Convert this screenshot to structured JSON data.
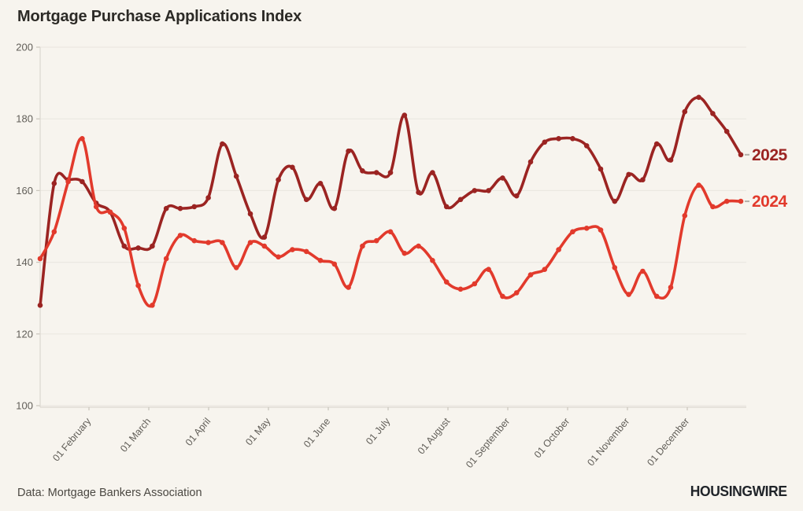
{
  "title": "Mortgage Purchase Applications Index",
  "source": "Data: Mortgage Bankers Association",
  "brand": "HOUSINGWIRE",
  "colors": {
    "background": "#f7f4ee",
    "grid": "#ebe8e1",
    "axis": "#dcd8d0",
    "tick": "#c9c5bc",
    "tick_text": "#615e58",
    "label_dash": "#b3afa7",
    "series_2025": "#9b2422",
    "series_2024": "#e23a2c"
  },
  "chart_data": {
    "type": "line",
    "title": "Mortgage Purchase Applications Index",
    "x_unit": "weekly, January through December",
    "x_tick_labels": [
      "01 February",
      "01 March",
      "01 April",
      "01 May",
      "01 June",
      "01 July",
      "01 August",
      "01 September",
      "01 October",
      "01 November",
      "01 December"
    ],
    "y_ticks": [
      100,
      120,
      140,
      160,
      180,
      200
    ],
    "ylim": [
      100,
      200
    ],
    "grid": "horizontal",
    "legend_position": "end-of-line labels, right side",
    "series": [
      {
        "name": "2025",
        "color": "#9b2422",
        "values": [
          128,
          162,
          163,
          162.5,
          156.5,
          154,
          144.5,
          144,
          144.5,
          155,
          155,
          155.5,
          158,
          173,
          164,
          153.5,
          147,
          163,
          166.5,
          157.5,
          162,
          155,
          171,
          165.5,
          165,
          165,
          181,
          159.5,
          165,
          155.5,
          157.5,
          160,
          160,
          163.5,
          158.5,
          168,
          173.5,
          174.5,
          174.5,
          172.5,
          166,
          157,
          164.5,
          163,
          173,
          168.5,
          182,
          186,
          181.5,
          176.5,
          170
        ]
      },
      {
        "name": "2024",
        "color": "#e23a2c",
        "values": [
          141,
          148.5,
          162.5,
          174.5,
          155.5,
          154,
          149.5,
          133.5,
          128,
          141,
          147.5,
          146,
          145.5,
          145.5,
          138.5,
          145.5,
          144.5,
          141.5,
          143.5,
          143,
          140.5,
          139.5,
          133,
          144.5,
          146,
          148.5,
          142.5,
          144.5,
          140.5,
          134.5,
          132.5,
          134,
          138,
          130.5,
          131.5,
          136.5,
          138,
          143.5,
          148.5,
          149.5,
          149,
          138.5,
          131,
          137.5,
          130.5,
          133,
          153,
          161.5,
          155.5,
          157,
          157
        ]
      }
    ]
  }
}
